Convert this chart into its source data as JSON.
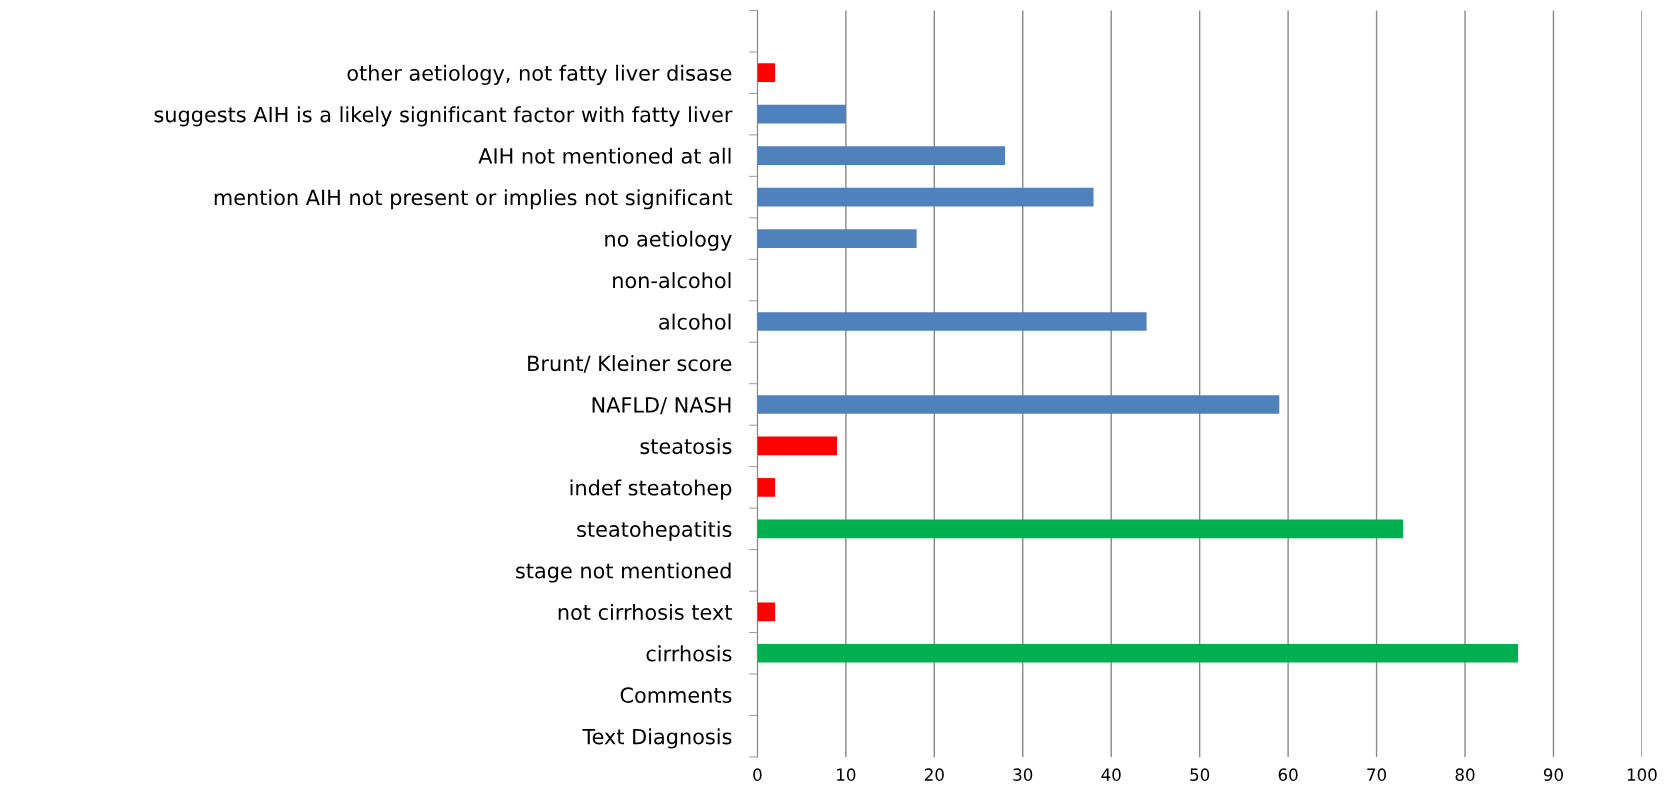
{
  "chart_data": {
    "type": "bar",
    "orientation": "horizontal",
    "categories": [
      null,
      "other aetiology, not fatty liver disase",
      "suggests AIH is a likely significant factor with fatty liver",
      "AIH not mentioned at all",
      "mention AIH not present or implies not significant",
      "no aetiology",
      "non-alcohol",
      "alcohol",
      "Brunt/ Kleiner score",
      "NAFLD/ NASH",
      "steatosis",
      "indef steatohep",
      "steatohepatitis",
      "stage not mentioned",
      "not cirrhosis text",
      "cirrhosis",
      "Comments",
      "Text Diagnosis"
    ],
    "values": [
      null,
      2,
      10,
      28,
      38,
      18,
      null,
      44,
      null,
      59,
      9,
      2,
      73,
      null,
      2,
      86,
      null,
      null
    ],
    "colors": [
      null,
      "#ff0000",
      "#4f81bd",
      "#4f81bd",
      "#4f81bd",
      "#4f81bd",
      null,
      "#4f81bd",
      null,
      "#4f81bd",
      "#ff0000",
      "#ff0000",
      "#00b050",
      null,
      "#ff0000",
      "#00b050",
      null,
      null
    ],
    "xlim": [
      0,
      100
    ],
    "xticks": [
      0,
      10,
      20,
      30,
      40,
      50,
      60,
      70,
      80,
      90,
      100
    ],
    "grid": "x"
  }
}
